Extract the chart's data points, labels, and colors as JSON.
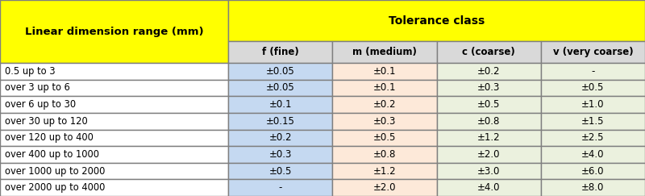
{
  "title_left": "Linear dimension range (mm)",
  "title_right": "Tolerance class",
  "col_headers": [
    "f (fine)",
    "m (medium)",
    "c (coarse)",
    "v (very coarse)"
  ],
  "row_labels": [
    "0.5 up to 3",
    "over 3 up to 6",
    "over 6 up to 30",
    "over 30 up to 120",
    "over 120 up to 400",
    "over 400 up to 1000",
    "over 1000 up to 2000",
    "over 2000 up to 4000"
  ],
  "table_data": [
    [
      "±0.05",
      "±0.1",
      "±0.2",
      "-"
    ],
    [
      "±0.05",
      "±0.1",
      "±0.3",
      "±0.5"
    ],
    [
      "±0.1",
      "±0.2",
      "±0.5",
      "±1.0"
    ],
    [
      "±0.15",
      "±0.3",
      "±0.8",
      "±1.5"
    ],
    [
      "±0.2",
      "±0.5",
      "±1.2",
      "±2.5"
    ],
    [
      "±0.3",
      "±0.8",
      "±2.0",
      "±4.0"
    ],
    [
      "±0.5",
      "±1.2",
      "±3.0",
      "±6.0"
    ],
    [
      "-",
      "±2.0",
      "±4.0",
      "±8.0"
    ]
  ],
  "yellow": "#FFFF00",
  "subheader_bg": "#D9D9D9",
  "white": "#FFFFFF",
  "col_bg": [
    "#C5D9F1",
    "#FDE9D9",
    "#EBF1DE",
    "#EBF1DE"
  ],
  "border_color": "#7F7F7F",
  "text_color": "#000000",
  "fig_width": 8.0,
  "fig_height": 2.43,
  "dpi": 100
}
